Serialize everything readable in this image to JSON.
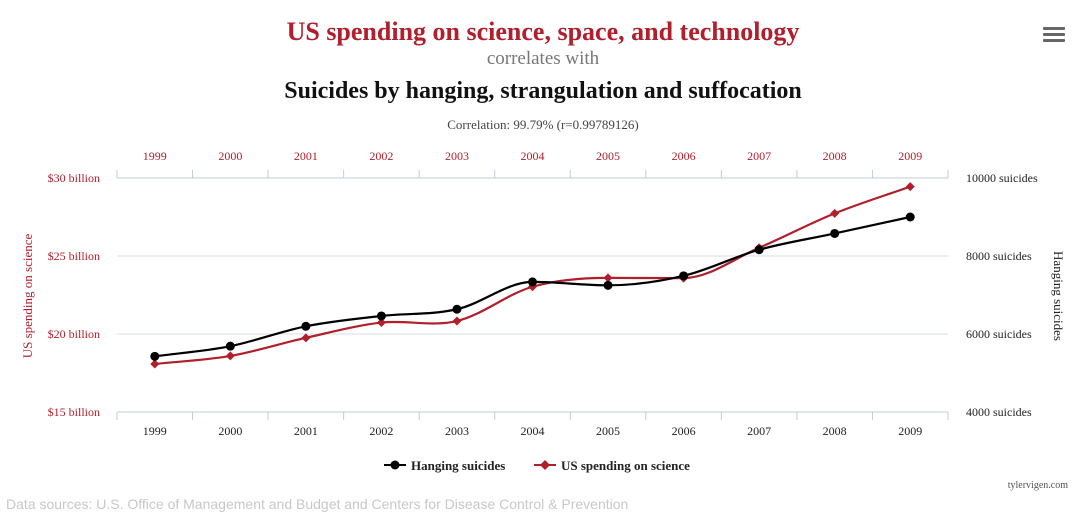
{
  "header": {
    "title": "US spending on science, space, and technology",
    "connector": "correlates with",
    "subtitle": "Suicides by hanging, strangulation and suffocation",
    "correlation": "Correlation: 99.79% (r=0.99789126)"
  },
  "menu": {
    "icon": "hamburger-menu-icon"
  },
  "chart_data": {
    "type": "line",
    "categories": [
      "1999",
      "2000",
      "2001",
      "2002",
      "2003",
      "2004",
      "2005",
      "2006",
      "2007",
      "2008",
      "2009"
    ],
    "series": [
      {
        "name": "Hanging suicides",
        "axis": "right",
        "color": "#000000",
        "marker": "circle",
        "values": [
          5427,
          5688,
          6198,
          6462,
          6635,
          7336,
          7248,
          7491,
          8161,
          8578,
          9000
        ]
      },
      {
        "name": "US spending on science",
        "axis": "left",
        "color": "#b11e2c",
        "marker": "diamond",
        "values": [
          18.079,
          18.594,
          19.753,
          20.734,
          20.831,
          23.029,
          23.597,
          23.584,
          25.525,
          27.731,
          29.449
        ]
      }
    ],
    "left_axis": {
      "title": "US spending on science",
      "range": [
        15,
        30
      ],
      "ticks": [
        {
          "value": 15,
          "label": "$15 billion"
        },
        {
          "value": 20,
          "label": "$20 billion"
        },
        {
          "value": 25,
          "label": "$25 billion"
        },
        {
          "value": 30,
          "label": "$30 billion"
        }
      ]
    },
    "right_axis": {
      "title": "Hanging suicides",
      "range": [
        4000,
        10000
      ],
      "ticks": [
        {
          "value": 4000,
          "label": "4000 suicides"
        },
        {
          "value": 6000,
          "label": "6000 suicides"
        },
        {
          "value": 8000,
          "label": "8000 suicides"
        },
        {
          "value": 10000,
          "label": "10000 suicides"
        }
      ]
    },
    "legend": {
      "position": "bottom-center"
    },
    "grid": true
  },
  "credit": "tylervigen.com",
  "footer": {
    "sources": "Data sources: U.S. Office of Management and Budget and Centers for Disease Control & Prevention"
  }
}
